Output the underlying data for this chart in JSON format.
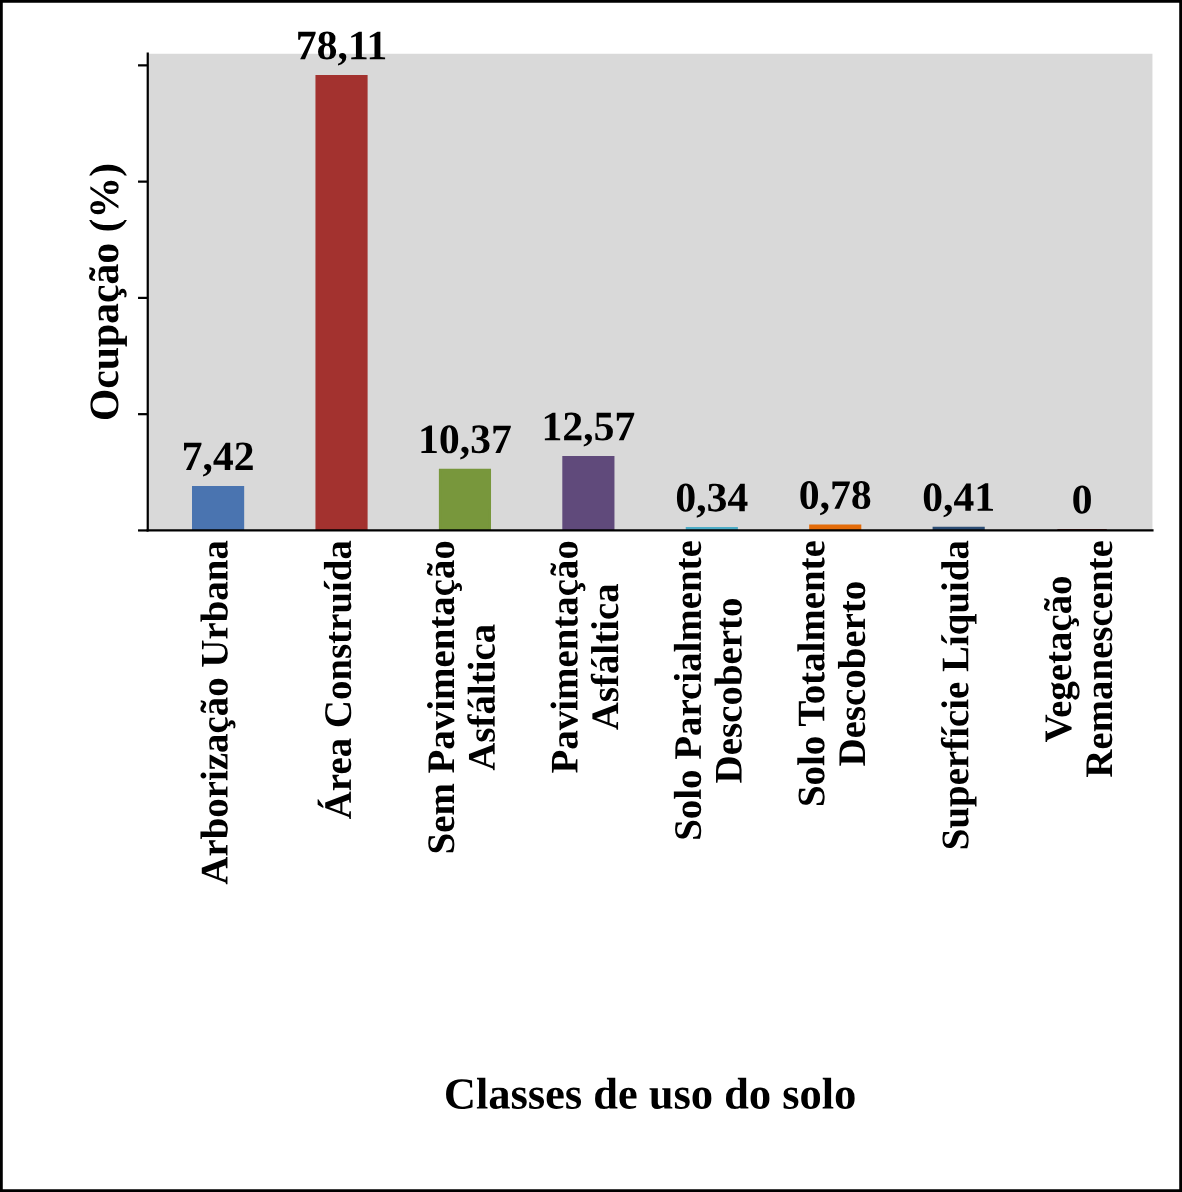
{
  "chart_data": {
    "type": "bar",
    "xlabel": "Classes de uso do solo",
    "ylabel": "Ocupação (%)",
    "categories": [
      "Arborização Urbana",
      "Área Construída",
      "Sem Pavimentação\nAsfáltica",
      "Pavimentação\nAsfáltica",
      "Solo Parcialmente\nDescoberto",
      "Solo Totalmente\nDescoberto",
      "Superfície Líquida",
      "Vegetação\nRemanescente"
    ],
    "values": [
      7.42,
      78.11,
      10.37,
      12.57,
      0.34,
      0.78,
      0.41,
      0
    ],
    "value_labels": [
      "7,42",
      "78,11",
      "10,37",
      "12,57",
      "0,34",
      "0,78",
      "0,41",
      "0"
    ],
    "colors": [
      "#4a74b0",
      "#a3322f",
      "#78973c",
      "#604a7b",
      "#4bacc6",
      "#e46c0a",
      "#2c4d75",
      "#772c2a"
    ],
    "tick_labels": "x",
    "grid": false,
    "legend": false
  }
}
